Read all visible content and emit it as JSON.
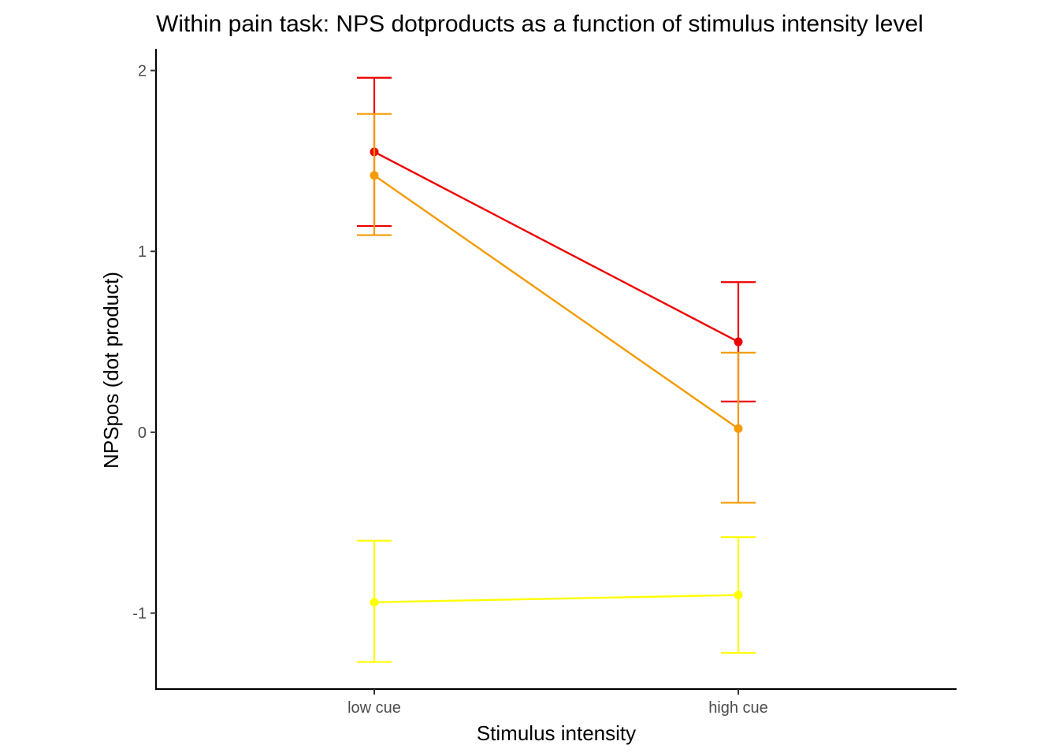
{
  "chart_data": {
    "type": "line",
    "title": "Within pain task: NPS dotproducts as a function of stimulus intensity level",
    "xlabel": "Stimulus intensity",
    "ylabel": "NPSpos (dot product)",
    "categories": [
      "low cue",
      "high cue"
    ],
    "ylim": [
      -1.42,
      2.12
    ],
    "yticks": [
      -1,
      0,
      1,
      2
    ],
    "ytick_labels": [
      "-1",
      "0",
      "1",
      "2"
    ],
    "grid": false,
    "legend": "none",
    "series": [
      {
        "color": "#ee0000",
        "values": [
          1.55,
          0.5
        ],
        "lower": [
          1.14,
          0.17
        ],
        "upper": [
          1.96,
          0.83
        ]
      },
      {
        "color": "#f59a00",
        "values": [
          1.42,
          0.02
        ],
        "lower": [
          1.09,
          -0.39
        ],
        "upper": [
          1.76,
          0.44
        ]
      },
      {
        "color": "#ffff00",
        "values": [
          -0.94,
          -0.9
        ],
        "lower": [
          -1.27,
          -1.22
        ],
        "upper": [
          -0.6,
          -0.58
        ]
      }
    ]
  }
}
